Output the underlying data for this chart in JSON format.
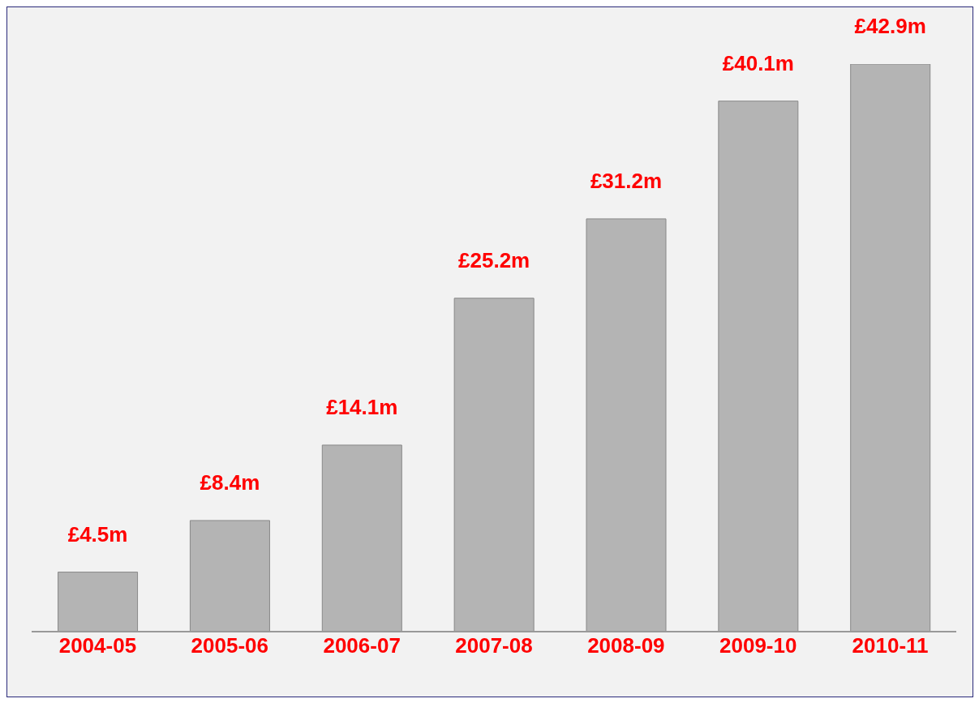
{
  "chart_data": {
    "type": "bar",
    "categories": [
      "2004-05",
      "2005-06",
      "2006-07",
      "2007-08",
      "2008-09",
      "2009-10",
      "2010-11"
    ],
    "values": [
      4.5,
      8.4,
      14.1,
      25.2,
      31.2,
      40.1,
      42.9
    ],
    "value_labels": [
      "£4.5m",
      "£8.4m",
      "£14.1m",
      "£25.2m",
      "£31.2m",
      "£40.1m",
      "£42.9m"
    ],
    "color": "#b4b4b4",
    "grid": false,
    "legend": false
  }
}
